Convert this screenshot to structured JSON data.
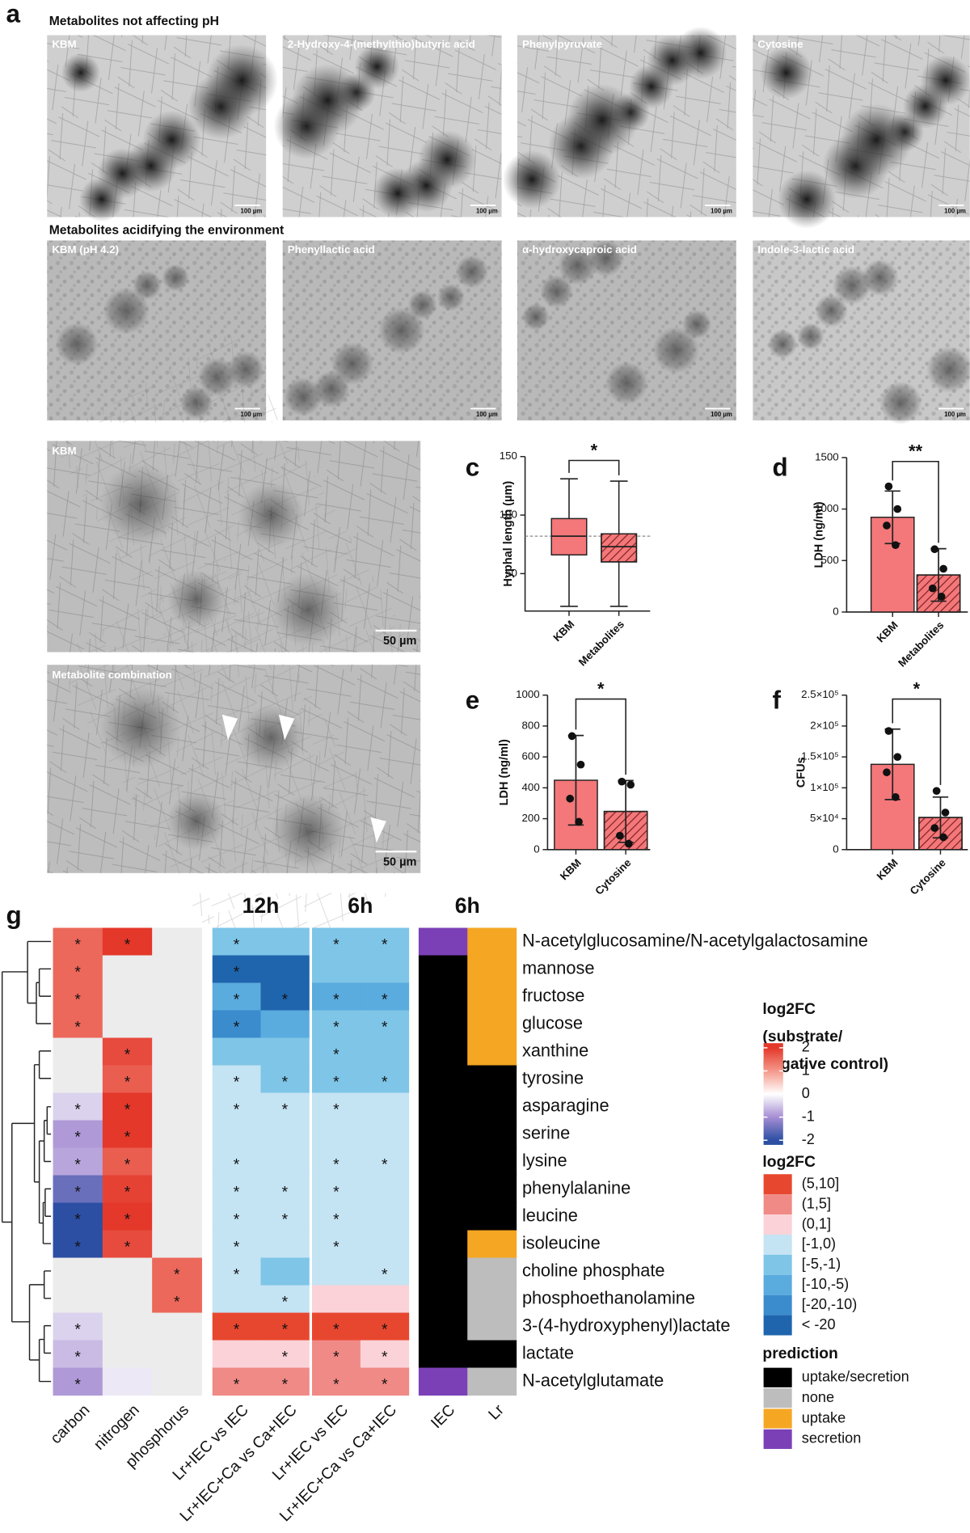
{
  "panel_a": {
    "label": "a",
    "groups": [
      {
        "title": "Metabolites not affecting pH",
        "images": [
          {
            "label": "KBM",
            "scale_bar": "100 µm"
          },
          {
            "label": "2-Hydroxy-4-(methylthio)butyric acid",
            "scale_bar": "100 µm"
          },
          {
            "label": "Phenylpyruvate",
            "scale_bar": "100 µm"
          },
          {
            "label": "Cytosine",
            "scale_bar": "100 µm"
          }
        ]
      },
      {
        "title": "Metabolites acidifying the environment",
        "images": [
          {
            "label": "KBM (pH 4.2)",
            "scale_bar": "100 µm"
          },
          {
            "label": "Phenyllactic acid",
            "scale_bar": "100 µm"
          },
          {
            "label": "α-hydroxycaproic acid",
            "scale_bar": "100 µm"
          },
          {
            "label": "Indole-3-lactic acid",
            "scale_bar": "100 µm"
          }
        ]
      }
    ]
  },
  "panel_b": {
    "label": "b",
    "images": [
      {
        "label": "KBM",
        "scale_bar": "50 µm"
      },
      {
        "label": "Metabolite combination",
        "scale_bar": "50 µm"
      }
    ]
  },
  "chart_data": [
    {
      "panel": "c",
      "type": "box",
      "ylabel": "Hyphal length (µm)",
      "categories": [
        "KBM",
        "Metabolites"
      ],
      "boxes": [
        {
          "min": 22,
          "q1": 66,
          "median": 82,
          "q3": 97,
          "max": 131
        },
        {
          "min": 22,
          "q1": 60,
          "median": 73,
          "q3": 84,
          "max": 129
        }
      ],
      "hatched": [
        false,
        true
      ],
      "color": "#f4777a",
      "reference_line": 82,
      "ylim": [
        18,
        150
      ],
      "yticks": [
        50,
        100,
        150
      ],
      "significance": "*"
    },
    {
      "panel": "d",
      "type": "bar",
      "ylabel": "LDH (ng/ml)",
      "categories": [
        "KBM",
        "Metabolites"
      ],
      "values": [
        920,
        360
      ],
      "errors": [
        255,
        255
      ],
      "points": [
        [
          1220,
          1000,
          840,
          650
        ],
        [
          610,
          420,
          230,
          150
        ]
      ],
      "hatched": [
        false,
        true
      ],
      "color": "#f4777a",
      "ylim": [
        0,
        1500
      ],
      "yticks": [
        0,
        500,
        1000,
        1500
      ],
      "significance": "**"
    },
    {
      "panel": "e",
      "type": "bar",
      "ylabel": "LDH (ng/ml)",
      "categories": [
        "KBM",
        "Cytosine"
      ],
      "values": [
        449,
        247
      ],
      "errors": [
        290,
        200
      ],
      "points": [
        [
          735,
          550,
          330,
          180
        ],
        [
          440,
          420,
          90,
          38
        ]
      ],
      "hatched": [
        false,
        true
      ],
      "color": "#f4777a",
      "ylim": [
        0,
        1000
      ],
      "yticks": [
        0,
        200,
        400,
        600,
        800,
        1000
      ],
      "significance": "*"
    },
    {
      "panel": "f",
      "type": "bar",
      "ylabel": "CFUs",
      "categories": [
        "KBM",
        "Cytosine"
      ],
      "values": [
        138000,
        52000
      ],
      "errors": [
        57000,
        33000
      ],
      "points": [
        [
          192000,
          150000,
          125000,
          85000
        ],
        [
          95000,
          60000,
          35000,
          20000
        ]
      ],
      "hatched": [
        false,
        true
      ],
      "color": "#f4777a",
      "ylim": [
        0,
        250000
      ],
      "yticks": [
        0,
        {
          "value": 50000,
          "label": "5×10⁴"
        },
        {
          "value": 100000,
          "label": "1×10⁵"
        },
        {
          "value": 150000,
          "label": "1.5×10⁵"
        },
        {
          "value": 200000,
          "label": "2×10⁵"
        },
        {
          "value": 250000,
          "label": "2.5×10⁵"
        }
      ],
      "significance": "*"
    }
  ],
  "panel_g": {
    "label": "g",
    "rows": [
      "N-acetylglucosamine/N-acetylgalactosamine",
      "mannose",
      "fructose",
      "glucose",
      "xanthine",
      "tyrosine",
      "asparagine",
      "serine",
      "lysine",
      "phenylalanine",
      "leucine",
      "isoleucine",
      "choline phosphate",
      "phosphoethanolamine",
      "3-(4-hydroxyphenyl)lactate",
      "lactate",
      "N-acetylglutamate"
    ],
    "nutrient": {
      "columns": [
        "carbon",
        "nitrogen",
        "phosphorus"
      ],
      "values": [
        [
          1.5,
          2,
          null
        ],
        [
          1.5,
          null,
          null
        ],
        [
          1.5,
          null,
          null
        ],
        [
          1.5,
          null,
          null
        ],
        [
          null,
          1.8,
          null
        ],
        [
          null,
          1.6,
          null
        ],
        [
          -0.4,
          2,
          null
        ],
        [
          -0.9,
          2,
          null
        ],
        [
          -0.8,
          1.6,
          null
        ],
        [
          -1.5,
          1.9,
          null
        ],
        [
          -2,
          2,
          null
        ],
        [
          -2,
          1.8,
          null
        ],
        [
          null,
          null,
          1.5
        ],
        [
          null,
          null,
          1.5
        ],
        [
          -0.4,
          null,
          null
        ],
        [
          -0.6,
          null,
          null
        ],
        [
          -0.9,
          -0.2,
          null
        ]
      ],
      "stars": [
        [
          "*",
          "*",
          null
        ],
        [
          "*",
          null,
          null
        ],
        [
          "*",
          null,
          null
        ],
        [
          "*",
          null,
          null
        ],
        [
          null,
          "*",
          null
        ],
        [
          null,
          "*",
          null
        ],
        [
          "*",
          "*",
          null
        ],
        [
          "*",
          "*",
          null
        ],
        [
          "*",
          "*",
          null
        ],
        [
          "*",
          "*",
          null
        ],
        [
          "*",
          "*",
          null
        ],
        [
          "*",
          "*",
          null
        ],
        [
          null,
          null,
          "*"
        ],
        [
          null,
          null,
          "*"
        ],
        [
          "*",
          null,
          null
        ],
        [
          "*",
          null,
          null
        ],
        [
          "*",
          null,
          null
        ]
      ]
    },
    "comparisons": {
      "headers": [
        "12h",
        "6h"
      ],
      "columns": [
        "Lr+IEC vs IEC",
        "Lr+IEC+Ca vs Ca+IEC",
        "Lr+IEC vs IEC",
        "Lr+IEC+Ca vs Ca+IEC"
      ],
      "bins": [
        [
          "[-5,-1)",
          "[-5,-1)",
          "[-5,-1)",
          "[-5,-1)"
        ],
        [
          "< -20",
          "< -20",
          "[-5,-1)",
          "[-5,-1)"
        ],
        [
          "[-10,-5)",
          "< -20",
          "[-10,-5)",
          "[-10,-5)"
        ],
        [
          "[-20,-10)",
          "[-10,-5)",
          "[-5,-1)",
          "[-5,-1)"
        ],
        [
          "[-5,-1)",
          "[-5,-1)",
          "[-5,-1)",
          "[-5,-1)"
        ],
        [
          "[-1,0)",
          "[-5,-1)",
          "[-5,-1)",
          "[-5,-1)"
        ],
        [
          "[-1,0)",
          "[-1,0)",
          "[-1,0)",
          "[-1,0)"
        ],
        [
          "[-1,0)",
          "[-1,0)",
          "[-1,0)",
          "[-1,0)"
        ],
        [
          "[-1,0)",
          "[-1,0)",
          "[-1,0)",
          "[-1,0)"
        ],
        [
          "[-1,0)",
          "[-1,0)",
          "[-1,0)",
          "[-1,0)"
        ],
        [
          "[-1,0)",
          "[-1,0)",
          "[-1,0)",
          "[-1,0)"
        ],
        [
          "[-1,0)",
          "[-1,0)",
          "[-1,0)",
          "[-1,0)"
        ],
        [
          "[-1,0)",
          "[-5,-1)",
          "[-1,0)",
          "[-1,0)"
        ],
        [
          "[-1,0)",
          "[-1,0)",
          "(0,1]",
          "(0,1]"
        ],
        [
          "(5,10]",
          "(5,10]",
          "(5,10]",
          "(5,10]"
        ],
        [
          "(0,1]",
          "(0,1]",
          "(1,5]",
          "(0,1]"
        ],
        [
          "(1,5]",
          "(1,5]",
          "(1,5]",
          "(1,5]"
        ]
      ],
      "stars": [
        [
          "*",
          null,
          "*",
          "*"
        ],
        [
          "*",
          null,
          null,
          null
        ],
        [
          "*",
          "*",
          "*",
          "*"
        ],
        [
          "*",
          null,
          "*",
          "*"
        ],
        [
          null,
          null,
          "*",
          null
        ],
        [
          "*",
          "*",
          "*",
          "*"
        ],
        [
          "*",
          "*",
          "*",
          null
        ],
        [
          null,
          null,
          null,
          null
        ],
        [
          "*",
          null,
          "*",
          "*"
        ],
        [
          "*",
          "*",
          "*",
          null
        ],
        [
          "*",
          "*",
          "*",
          null
        ],
        [
          "*",
          null,
          "*",
          null
        ],
        [
          "*",
          null,
          null,
          "*"
        ],
        [
          null,
          "*",
          null,
          null
        ],
        [
          "*",
          "*",
          "*",
          "*"
        ],
        [
          null,
          "*",
          "*",
          "*"
        ],
        [
          "*",
          "*",
          "*",
          "*"
        ]
      ]
    },
    "prediction": {
      "header": "6h",
      "columns": [
        "IEC",
        "Lr"
      ],
      "values": [
        [
          "secretion",
          "uptake"
        ],
        [
          "uptake/secretion",
          "uptake"
        ],
        [
          "uptake/secretion",
          "uptake"
        ],
        [
          "uptake/secretion",
          "uptake"
        ],
        [
          "uptake/secretion",
          "uptake"
        ],
        [
          "uptake/secretion",
          "uptake/secretion"
        ],
        [
          "uptake/secretion",
          "uptake/secretion"
        ],
        [
          "uptake/secretion",
          "uptake/secretion"
        ],
        [
          "uptake/secretion",
          "uptake/secretion"
        ],
        [
          "uptake/secretion",
          "uptake/secretion"
        ],
        [
          "uptake/secretion",
          "uptake/secretion"
        ],
        [
          "uptake/secretion",
          "uptake"
        ],
        [
          "uptake/secretion",
          "none"
        ],
        [
          "uptake/secretion",
          "none"
        ],
        [
          "uptake/secretion",
          "none"
        ],
        [
          "uptake/secretion",
          "uptake/secretion"
        ],
        [
          "secretion",
          "none"
        ]
      ]
    },
    "legend_gradient": {
      "title": [
        "log2FC",
        "(substrate/",
        "negative control)"
      ],
      "ticks": [
        2,
        1,
        0,
        -1,
        -2
      ],
      "lim": [
        -2.2,
        2.2
      ],
      "stops": [
        {
          "value": -2,
          "color": "#2c4fa3"
        },
        {
          "value": -1,
          "color": "#a68ed3"
        },
        {
          "value": 0,
          "color": "#ffffff"
        },
        {
          "value": 1,
          "color": "#f4988a"
        },
        {
          "value": 2,
          "color": "#e3382a"
        }
      ],
      "missing_color": "#ececec"
    },
    "legend_bins": {
      "title": "log2FC",
      "items": [
        {
          "label": "(5,10]",
          "color": "#e8472f"
        },
        {
          "label": "(1,5]",
          "color": "#f08a86"
        },
        {
          "label": "(0,1]",
          "color": "#fbd2d8"
        },
        {
          "label": "[-1,0)",
          "color": "#c4e3f3"
        },
        {
          "label": "[-5,-1)",
          "color": "#7ec5e7"
        },
        {
          "label": "[-10,-5)",
          "color": "#5aabde"
        },
        {
          "label": "[-20,-10)",
          "color": "#3b8ccd"
        },
        {
          "label": "< -20",
          "color": "#1f65ad"
        }
      ]
    },
    "legend_prediction": {
      "title": "prediction",
      "items": [
        {
          "label": "uptake/secretion",
          "color": "#000000"
        },
        {
          "label": "none",
          "color": "#bdbdbd"
        },
        {
          "label": "uptake",
          "color": "#f5a623"
        },
        {
          "label": "secretion",
          "color": "#7b40b6"
        }
      ]
    }
  }
}
